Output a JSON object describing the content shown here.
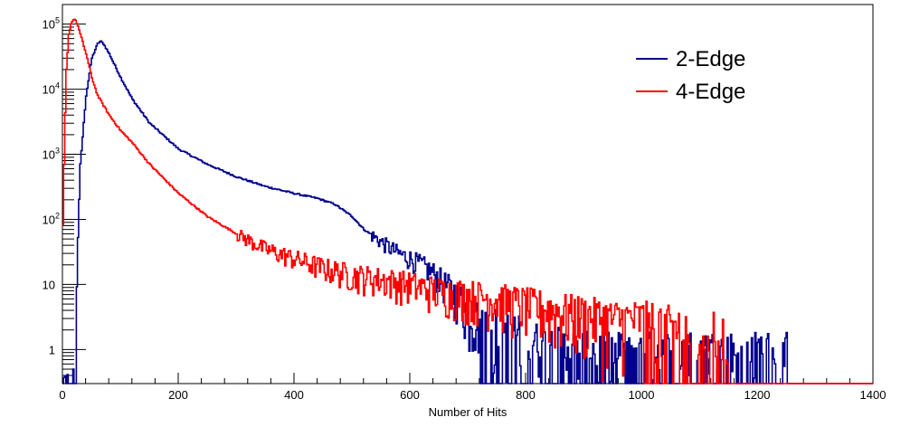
{
  "chart_data": {
    "type": "line",
    "title": "",
    "xlabel": "Number of Hits",
    "ylabel": "",
    "xlim": [
      0,
      1400
    ],
    "ylim": [
      0.3,
      200000
    ],
    "yscale": "log",
    "grid": false,
    "legend_position": "top-right",
    "x_ticks": [
      0,
      200,
      400,
      600,
      800,
      1000,
      1200,
      1400
    ],
    "y_ticks": [
      {
        "value": 1,
        "label": "1",
        "exp": ""
      },
      {
        "value": 10,
        "label": "10",
        "exp": ""
      },
      {
        "value": 100,
        "label": "10",
        "exp": "2"
      },
      {
        "value": 1000,
        "label": "10",
        "exp": "3"
      },
      {
        "value": 10000,
        "label": "10",
        "exp": "4"
      },
      {
        "value": 100000,
        "label": "10",
        "exp": "5"
      }
    ],
    "series": [
      {
        "name": "2-Edge",
        "color": "#00008b",
        "x": [
          0,
          20,
          25,
          30,
          40,
          50,
          60,
          65,
          70,
          80,
          100,
          120,
          150,
          200,
          250,
          300,
          350,
          400,
          440,
          470,
          500,
          520,
          550,
          580,
          600,
          620,
          640,
          660,
          680,
          700,
          720,
          740,
          760,
          780,
          800,
          850,
          900,
          950,
          1000,
          1050,
          1100,
          1150,
          1200,
          1250
        ],
        "y": [
          0.3,
          0.3,
          30,
          700,
          8000,
          30000,
          50000,
          55000,
          50000,
          35000,
          15000,
          7000,
          3000,
          1200,
          700,
          450,
          320,
          250,
          210,
          170,
          110,
          70,
          45,
          30,
          25,
          20,
          15,
          10,
          7,
          4,
          3,
          2.5,
          2,
          2,
          1.5,
          1.2,
          1,
          1,
          1,
          1,
          1,
          1,
          1,
          1
        ]
      },
      {
        "name": "4-Edge",
        "color": "#ff0000",
        "x": [
          0,
          3,
          6,
          10,
          15,
          20,
          25,
          30,
          40,
          50,
          60,
          80,
          100,
          120,
          150,
          200,
          250,
          300,
          350,
          400,
          450,
          500,
          550,
          600,
          650,
          700,
          750,
          800,
          850,
          900,
          950,
          1000,
          1050,
          1100,
          1150
        ],
        "y": [
          80,
          2000,
          20000,
          70000,
          110000,
          120000,
          100000,
          70000,
          35000,
          15000,
          8000,
          4000,
          2300,
          1500,
          700,
          250,
          110,
          60,
          35,
          25,
          18,
          14,
          12,
          10,
          8,
          7,
          6,
          5,
          4,
          3.5,
          3,
          3,
          2.5,
          2,
          2
        ]
      }
    ]
  }
}
